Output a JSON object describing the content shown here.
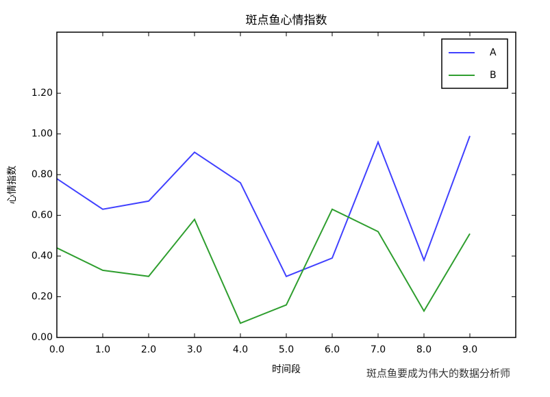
{
  "chart_data": {
    "type": "line",
    "title": "斑点鱼心情指数",
    "xlabel": "时间段",
    "ylabel": "心情指数",
    "x": [
      0,
      1,
      2,
      3,
      4,
      5,
      6,
      7,
      8,
      9
    ],
    "series": [
      {
        "name": "A",
        "color": "#4040ff",
        "values": [
          0.78,
          0.63,
          0.67,
          0.91,
          0.76,
          0.3,
          0.39,
          0.96,
          0.38,
          0.99
        ]
      },
      {
        "name": "B",
        "color": "#2e9e2e",
        "values": [
          0.44,
          0.33,
          0.3,
          0.58,
          0.07,
          0.16,
          0.63,
          0.52,
          0.13,
          0.51
        ]
      }
    ],
    "xlim": [
      0,
      10
    ],
    "ylim": [
      0,
      1.5
    ],
    "xticks": [
      {
        "value": 0,
        "label": "0.0"
      },
      {
        "value": 1,
        "label": "1.0"
      },
      {
        "value": 2,
        "label": "2.0"
      },
      {
        "value": 3,
        "label": "3.0"
      },
      {
        "value": 4,
        "label": "4.0"
      },
      {
        "value": 5,
        "label": "5.0"
      },
      {
        "value": 6,
        "label": "6.0"
      },
      {
        "value": 7,
        "label": "7.0"
      },
      {
        "value": 8,
        "label": "8.0"
      },
      {
        "value": 9,
        "label": "9.0"
      }
    ],
    "yticks": [
      {
        "value": 0,
        "label": "0.00"
      },
      {
        "value": 0.2,
        "label": "0.20"
      },
      {
        "value": 0.4,
        "label": "0.40"
      },
      {
        "value": 0.6,
        "label": "0.60"
      },
      {
        "value": 0.8,
        "label": "0.80"
      },
      {
        "value": 1.0,
        "label": "1.00"
      },
      {
        "value": 1.2,
        "label": "1.20"
      }
    ],
    "legend": "upper right",
    "watermark": "斑点鱼要成为伟大的数据分析师"
  }
}
